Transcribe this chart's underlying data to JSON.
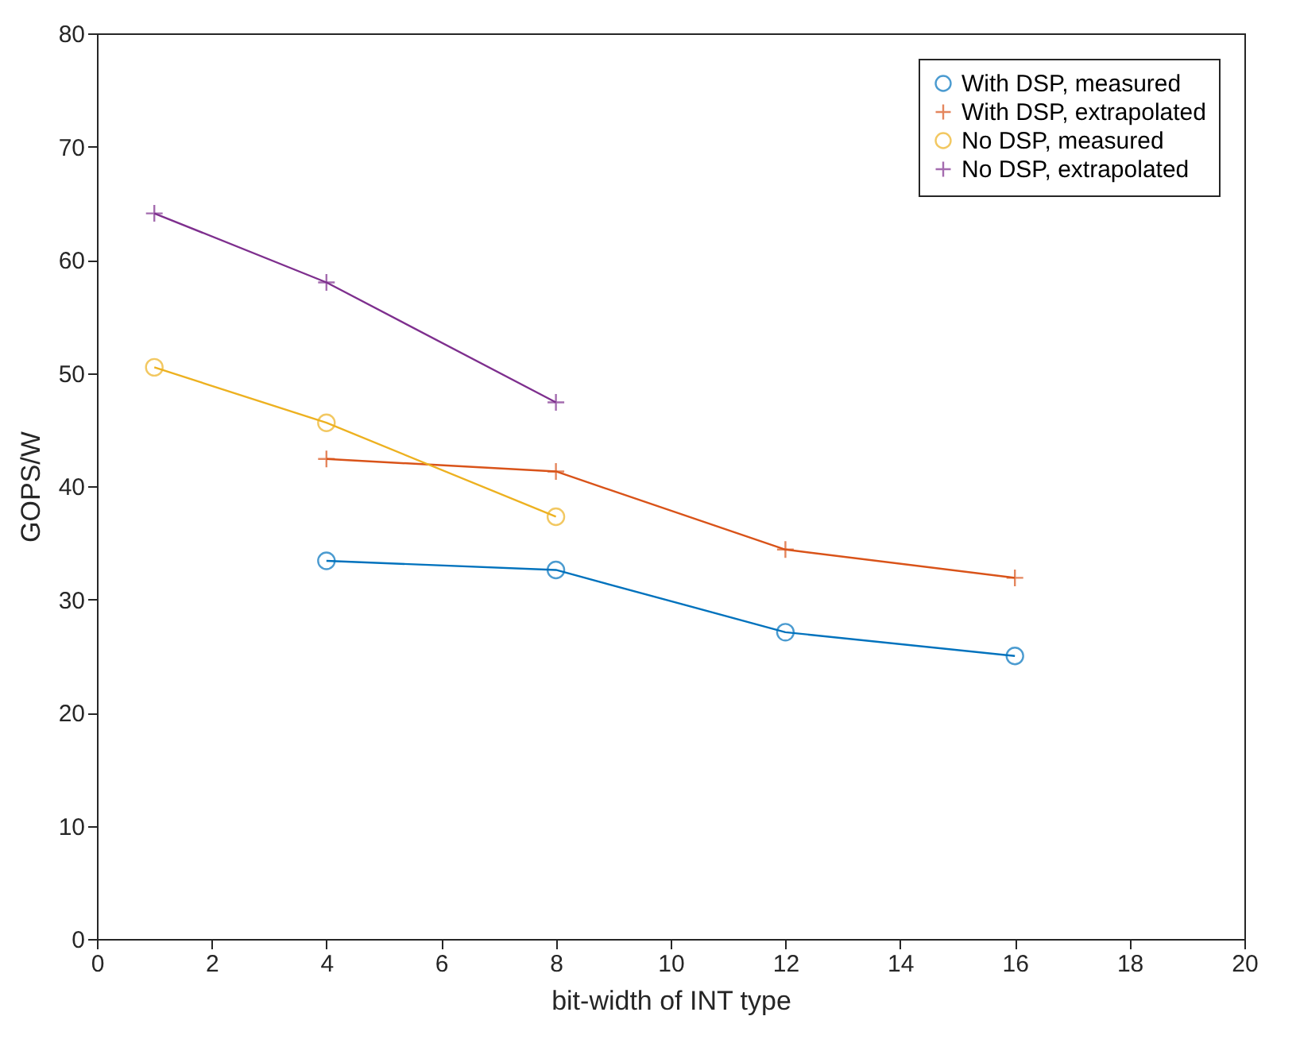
{
  "chart_data": {
    "type": "line",
    "xlabel": "bit-width of INT type",
    "ylabel": "GOPS/W",
    "xlim": [
      0,
      20
    ],
    "xticks": [
      0,
      2,
      4,
      6,
      8,
      10,
      12,
      14,
      16,
      18,
      20
    ],
    "ylim": [
      0,
      80
    ],
    "yticks": [
      0,
      10,
      20,
      30,
      40,
      50,
      60,
      70,
      80
    ],
    "grid": false,
    "legend": "top right",
    "line_style": "solid",
    "series": [
      {
        "name": "With DSP, measured",
        "color": "#0072bd",
        "marker": "circle",
        "x": [
          4,
          8,
          12,
          16
        ],
        "values": [
          33.4,
          32.6,
          27.1,
          25.0
        ]
      },
      {
        "name": "With DSP, extrapolated",
        "color": "#d95319",
        "marker": "cross",
        "x": [
          4,
          8,
          12,
          16
        ],
        "values": [
          42.4,
          41.3,
          34.4,
          31.9
        ]
      },
      {
        "name": "No DSP, measured",
        "color": "#edb120",
        "marker": "circle",
        "x": [
          1,
          4,
          8
        ],
        "values": [
          50.5,
          45.6,
          37.3
        ]
      },
      {
        "name": "No DSP, extrapolated",
        "color": "#7e2f8e",
        "marker": "cross",
        "x": [
          1,
          4,
          8
        ],
        "values": [
          64.1,
          58.0,
          47.4
        ]
      }
    ]
  }
}
